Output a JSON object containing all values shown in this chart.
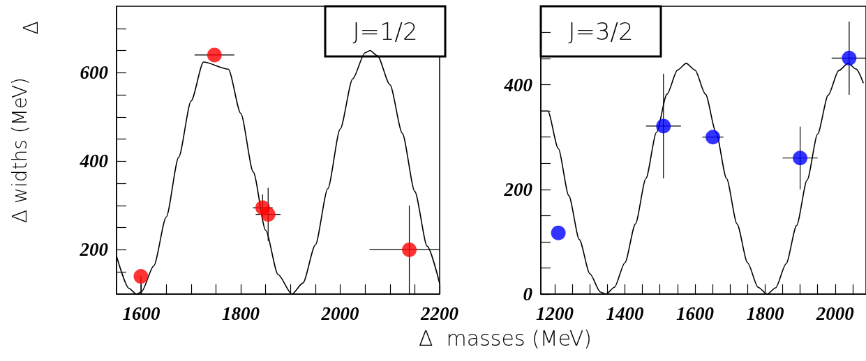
{
  "chart_data": [
    {
      "type": "scatter",
      "xlabel": "Δ  masses (MeV)",
      "ylabel": "Δ widths (MeV)",
      "annotations": [
        "J=1/2",
        "Δ"
      ],
      "marker": "circle",
      "xlim": [
        1550,
        2200
      ],
      "ylim": [
        100,
        750
      ],
      "xticks": [
        1600,
        {
          "value": 1650,
          "label": null
        },
        {
          "value": 1700,
          "label": null
        },
        {
          "value": 1750,
          "label": null
        },
        1800,
        {
          "value": 1850,
          "label": null
        },
        {
          "value": 1900,
          "label": null
        },
        {
          "value": 1950,
          "label": null
        },
        2000,
        {
          "value": 2050,
          "label": null
        },
        {
          "value": 2100,
          "label": null
        },
        {
          "value": 2150,
          "label": null
        },
        2200
      ],
      "yticks": [
        {
          "value": 150,
          "label": null
        },
        200,
        {
          "value": 250,
          "label": null
        },
        {
          "value": 300,
          "label": null
        },
        {
          "value": 350,
          "label": null
        },
        400,
        {
          "value": 450,
          "label": null
        },
        {
          "value": 500,
          "label": null
        },
        {
          "value": 550,
          "label": null
        },
        600,
        {
          "value": 650,
          "label": null
        },
        {
          "value": 700,
          "label": null
        }
      ],
      "series": [
        {
          "type": "line",
          "marker": "none",
          "line_style": "solid",
          "color": "#000000",
          "x": [
            1550,
            1575,
            1590,
            1600,
            1625,
            1650,
            1675,
            1700,
            1725,
            1775,
            1800,
            1825,
            1850,
            1875,
            1903,
            1925,
            1950,
            1975,
            2000,
            2025,
            2050,
            2060,
            2075,
            2100,
            2125,
            2150,
            2175,
            2200
          ],
          "values": [
            186,
            113,
            100,
            105,
            164,
            274,
            409,
            536,
            624,
            608,
            508,
            376,
            244,
            144,
            100,
            125,
            211,
            338,
            473,
            586,
            645,
            650,
            638,
            573,
            463,
            332,
            208,
            124
          ]
        },
        {
          "type": "scatter",
          "color": "#ff0000",
          "x": [
            1599,
            1747,
            1844,
            1855,
            2139
          ],
          "values": [
            140,
            640,
            295,
            280,
            200
          ],
          "errors": [
            [
              100,
              140
            ],
            null,
            30,
            60,
            100
          ],
          "xerrors": [
            null,
            40,
            20,
            25,
            80
          ]
        }
      ]
    },
    {
      "type": "scatter",
      "annotations": [
        "J=3/2"
      ],
      "marker": "circle",
      "xlim": [
        1160,
        2088
      ],
      "ylim": [
        0,
        550
      ],
      "xticks": [
        1200,
        {
          "value": 1250,
          "label": null
        },
        {
          "value": 1300,
          "label": null
        },
        {
          "value": 1350,
          "label": null
        },
        1400,
        {
          "value": 1450,
          "label": null
        },
        {
          "value": 1500,
          "label": null
        },
        {
          "value": 1550,
          "label": null
        },
        1600,
        {
          "value": 1650,
          "label": null
        },
        {
          "value": 1700,
          "label": null
        },
        {
          "value": 1750,
          "label": null
        },
        1800,
        {
          "value": 1850,
          "label": null
        },
        {
          "value": 1900,
          "label": null
        },
        {
          "value": 1950,
          "label": null
        },
        2000,
        {
          "value": 2050,
          "label": null
        }
      ],
      "yticks": [
        0,
        {
          "value": 50,
          "label": null
        },
        {
          "value": 100,
          "label": null
        },
        {
          "value": 150,
          "label": null
        },
        200,
        {
          "value": 250,
          "label": null
        },
        {
          "value": 300,
          "label": null
        },
        {
          "value": 350,
          "label": null
        },
        400,
        {
          "value": 450,
          "label": null
        },
        {
          "value": 500,
          "label": null
        }
      ],
      "series": [
        {
          "type": "line",
          "marker": "none",
          "line_style": "solid",
          "color": "#000000",
          "x": [
            1160,
            1180,
            1210,
            1240,
            1270,
            1300,
            1330,
            1346,
            1370,
            1400,
            1430,
            1460,
            1490,
            1520,
            1550,
            1575,
            1600,
            1630,
            1660,
            1690,
            1720,
            1750,
            1780,
            1806,
            1830,
            1860,
            1890,
            1920,
            1950,
            1980,
            2010,
            2037,
            2060,
            2080
          ],
          "values": [
            350,
            350,
            278,
            188,
            104,
            39,
            4,
            0,
            13,
            60,
            134,
            221,
            309,
            382,
            428,
            441,
            428,
            382,
            309,
            221,
            134,
            60,
            13,
            0,
            12,
            58,
            131,
            218,
            306,
            380,
            427,
            441,
            430,
            404
          ]
        },
        {
          "type": "scatter",
          "color": "#0000ff",
          "x": [
            1210,
            1510,
            1651,
            1900,
            2040
          ],
          "values": [
            117,
            321,
            300,
            260,
            451
          ],
          "errors": [
            null,
            100,
            null,
            60,
            70
          ],
          "xerrors": [
            null,
            50,
            30,
            50,
            50
          ]
        }
      ]
    }
  ]
}
